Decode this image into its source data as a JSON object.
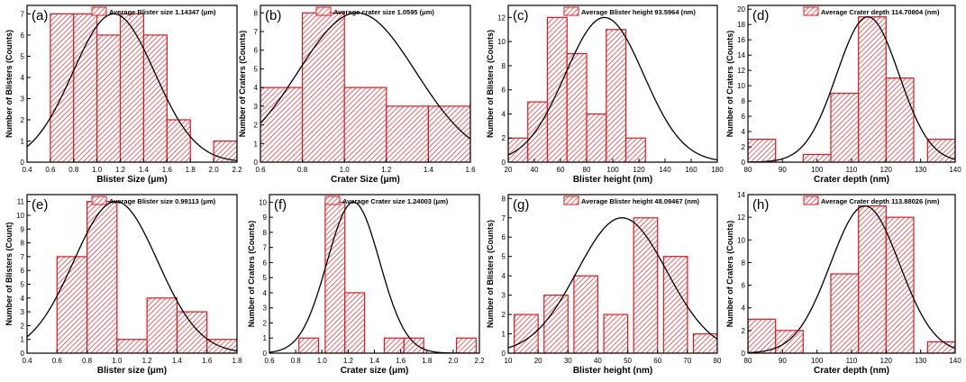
{
  "colors": {
    "bar_stroke": "#e8141b",
    "bar_hatch": "#e8141b",
    "curve": "#000000",
    "axis": "#000000"
  },
  "chart_data": [
    {
      "panel": "(a)",
      "type": "bar",
      "bin_width": 0.2,
      "bin_centers": [
        0.7,
        0.9,
        1.1,
        1.3,
        1.5,
        1.7,
        2.1
      ],
      "values": [
        7,
        7,
        6,
        7,
        6,
        2,
        1
      ],
      "xlim": [
        0.4,
        2.2
      ],
      "ylim": [
        0,
        7.4
      ],
      "xticks": [
        "0.4",
        "0.6",
        "0.8",
        "1.0",
        "1.2",
        "1.4",
        "1.6",
        "1.8",
        "2.0",
        "2.2"
      ],
      "yticks": [
        "0",
        "1",
        "2",
        "3",
        "4",
        "5",
        "6",
        "7"
      ],
      "xlabel": "Blister Size (μm)",
      "ylabel": "Number of Blisters (Counts)",
      "legend": "Average Blister size 1.14347 (μm)",
      "fit": {
        "mean": 1.14347,
        "sd": 0.35,
        "peak": 7.0
      }
    },
    {
      "panel": "(b)",
      "type": "bar",
      "bin_width": 0.2,
      "bin_centers": [
        0.7,
        0.9,
        1.1,
        1.3,
        1.5
      ],
      "values": [
        4,
        8,
        4,
        3,
        3
      ],
      "xlim": [
        0.6,
        1.6
      ],
      "ylim": [
        0,
        8.4
      ],
      "xticks": [
        "0.6",
        "0.8",
        "1.0",
        "1.2",
        "1.4",
        "1.6"
      ],
      "yticks": [
        "0",
        "1",
        "2",
        "3",
        "4",
        "5",
        "6",
        "7",
        "8"
      ],
      "xlabel": "Crater Size (μm)",
      "ylabel": "Number of Craters (Counts)",
      "legend": "Average crater size 1.0595 (μm)",
      "fit": {
        "mean": 1.0595,
        "sd": 0.28,
        "peak": 8.0
      }
    },
    {
      "panel": "(c)",
      "type": "bar",
      "bin_width": 15,
      "bin_centers": [
        27.5,
        42.5,
        57.5,
        72.5,
        87.5,
        102.5,
        117.5,
        132.5,
        147.5
      ],
      "values": [
        2,
        5,
        12,
        9,
        4,
        11,
        2,
        0,
        0
      ],
      "xlim": [
        20,
        180
      ],
      "ylim": [
        0,
        13
      ],
      "xticks": [
        "20",
        "40",
        "60",
        "80",
        "100",
        "120",
        "140",
        "160",
        "180"
      ],
      "yticks": [
        "0",
        "2",
        "4",
        "6",
        "8",
        "10",
        "12"
      ],
      "xlabel": "Blister height (nm)",
      "ylabel": "Number of Blisters (Counts)",
      "legend": "Average Blister height 93.5964 (nm)",
      "fit": {
        "mean": 93.5964,
        "sd": 30,
        "peak": 12.0
      }
    },
    {
      "panel": "(d)",
      "type": "bar",
      "bin_width": 8,
      "bin_centers": [
        84,
        100,
        108,
        116,
        124,
        136
      ],
      "values": [
        3,
        1,
        9,
        19,
        11,
        3
      ],
      "xlim": [
        80,
        140
      ],
      "ylim": [
        0,
        20.5
      ],
      "xticks": [
        "80",
        "90",
        "100",
        "110",
        "120",
        "130",
        "140"
      ],
      "yticks": [
        "0",
        "2",
        "4",
        "6",
        "8",
        "10",
        "12",
        "14",
        "16",
        "18",
        "20"
      ],
      "xlabel": "Crater depth (nm)",
      "ylabel": "Number of Craters (Counts)",
      "legend": "Average Crater depth 114.70804 (nm)",
      "fit": {
        "mean": 114.70804,
        "sd": 9,
        "peak": 19.0
      }
    },
    {
      "panel": "(e)",
      "type": "bar",
      "bin_width": 0.2,
      "bin_centers": [
        0.7,
        0.9,
        1.1,
        1.3,
        1.5,
        1.7
      ],
      "values": [
        7,
        11,
        1,
        4,
        3,
        1
      ],
      "xlim": [
        0.4,
        1.8
      ],
      "ylim": [
        0,
        11.5
      ],
      "xticks": [
        "0.4",
        "0.6",
        "0.8",
        "1.0",
        "1.2",
        "1.4",
        "1.6",
        "1.8"
      ],
      "yticks": [
        "0",
        "1",
        "2",
        "3",
        "4",
        "5",
        "6",
        "7",
        "8",
        "9",
        "10",
        "11"
      ],
      "xlabel": "Blister size (μm)",
      "ylabel": "Number of Blisters (Count)",
      "legend": "Average Blister size 0.99113 (μm)",
      "fit": {
        "mean": 0.99113,
        "sd": 0.28,
        "peak": 11.0
      }
    },
    {
      "panel": "(f)",
      "type": "bar",
      "bin_width": 0.15,
      "bin_centers": [
        0.9,
        1.1,
        1.25,
        1.55,
        1.7,
        2.1
      ],
      "values": [
        1,
        10,
        4,
        1,
        1,
        1
      ],
      "xlim": [
        0.6,
        2.2
      ],
      "ylim": [
        0,
        10.5
      ],
      "xticks": [
        "0.6",
        "0.8",
        "1.0",
        "1.2",
        "1.4",
        "1.6",
        "1.8",
        "2.0",
        "2.2"
      ],
      "yticks": [
        "0",
        "1",
        "2",
        "3",
        "4",
        "5",
        "6",
        "7",
        "8",
        "9",
        "10"
      ],
      "xlabel": "Crater size (μm)",
      "ylabel": "Number of Craters (Counts)",
      "legend": "Average Crater size 1.24003 (μm)",
      "fit": {
        "mean": 1.24003,
        "sd": 0.2,
        "peak": 10.0
      }
    },
    {
      "panel": "(g)",
      "type": "bar",
      "bin_width": 8,
      "bin_centers": [
        16,
        26,
        36,
        46,
        56,
        66,
        76
      ],
      "values": [
        2,
        3,
        4,
        2,
        7,
        5,
        1
      ],
      "xlim": [
        10,
        80
      ],
      "ylim": [
        0,
        8.2
      ],
      "xticks": [
        "10",
        "20",
        "30",
        "40",
        "50",
        "60",
        "70",
        "80"
      ],
      "yticks": [
        "0",
        "1",
        "2",
        "3",
        "4",
        "5",
        "6",
        "7",
        "8"
      ],
      "xlabel": "Blister height (nm)",
      "ylabel": "Number of Blisters (Counts)",
      "legend": "Average Blister height 48.09467 (nm)",
      "fit": {
        "mean": 48.09467,
        "sd": 15,
        "peak": 7.0
      }
    },
    {
      "panel": "(h)",
      "type": "bar",
      "bin_width": 8,
      "bin_centers": [
        84,
        92,
        108,
        116,
        124,
        136
      ],
      "values": [
        3,
        2,
        7,
        13,
        12,
        1
      ],
      "xlim": [
        80,
        140
      ],
      "ylim": [
        0,
        14
      ],
      "xticks": [
        "80",
        "90",
        "100",
        "110",
        "120",
        "130",
        "140"
      ],
      "yticks": [
        "0",
        "2",
        "4",
        "6",
        "8",
        "10",
        "12",
        "14"
      ],
      "xlabel": "Crater depth (nm)",
      "ylabel": "Number of Craters (Counts)",
      "legend": "Average Crater depth 113.88026 (nm)",
      "fit": {
        "mean": 113.88026,
        "sd": 10,
        "peak": 13.0
      }
    }
  ]
}
